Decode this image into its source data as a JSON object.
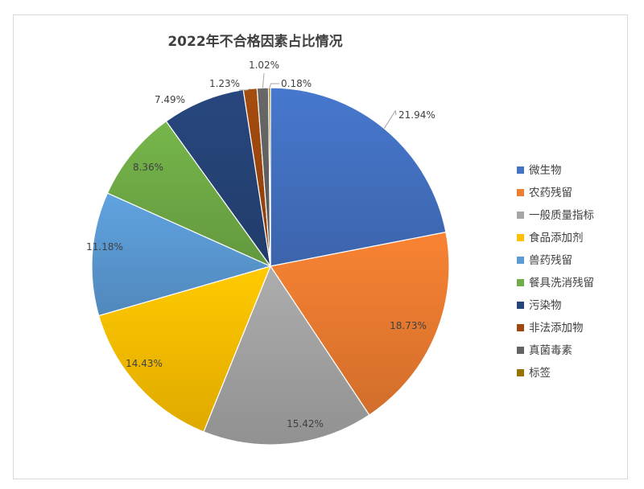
{
  "chart_data": {
    "type": "pie",
    "title": "2022年不合格因素占比情况",
    "legend_position": "right",
    "categories": [
      "微生物",
      "农药残留",
      "一般质量指标",
      "食品添加剂",
      "兽药残留",
      "餐具洗消残留",
      "污染物",
      "非法添加物",
      "真菌毒素",
      "标签"
    ],
    "values": [
      21.94,
      18.73,
      15.42,
      14.43,
      11.18,
      8.36,
      7.49,
      1.23,
      1.02,
      0.18
    ],
    "labels": [
      "21.94%",
      "18.73%",
      "15.42%",
      "14.43%",
      "11.18%",
      "8.36%",
      "7.49%",
      "1.23%",
      "1.02%",
      "0.18%"
    ],
    "colors": [
      "#4472C4",
      "#ED7D31",
      "#A5A5A5",
      "#FFC000",
      "#5B9BD5",
      "#70AD47",
      "#264478",
      "#9E480E",
      "#636363",
      "#997300"
    ]
  }
}
